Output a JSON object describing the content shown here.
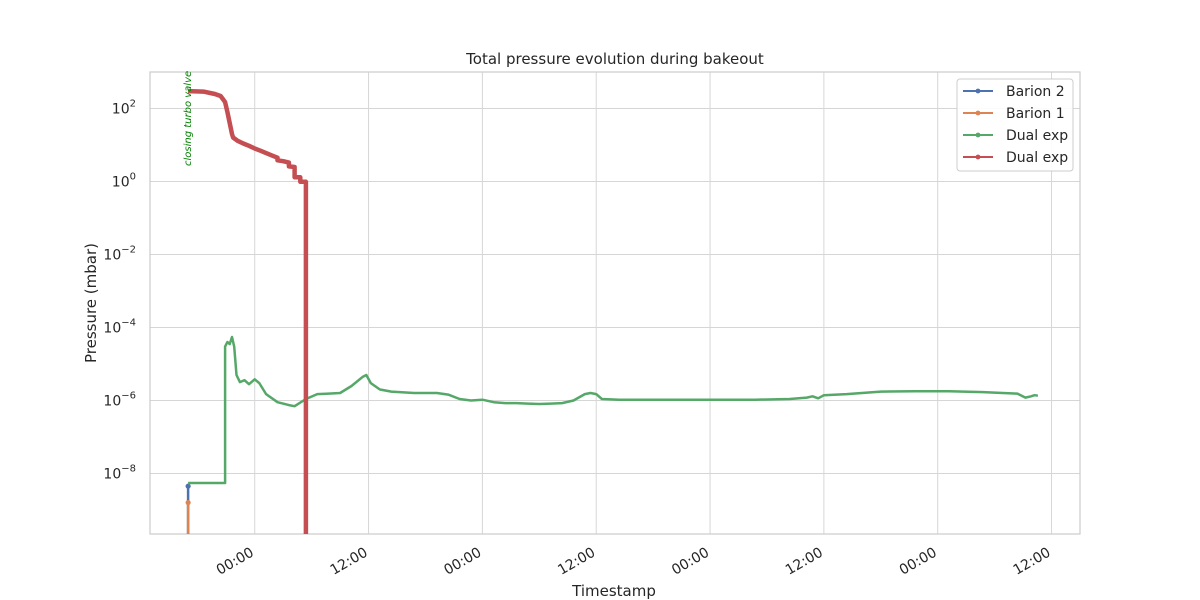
{
  "chart_data": {
    "type": "line",
    "title": "Total pressure evolution during bakeout",
    "xlabel": "Timestamp",
    "ylabel": "Pressure (mbar)",
    "x_unit": "hours",
    "xlim": [
      -9.2,
      72.5
    ],
    "ylog": true,
    "ylim": [
      2.2e-10,
      1000
    ],
    "yticks": [
      {
        "value": 100,
        "base": "10",
        "exp": "2"
      },
      {
        "value": 1,
        "base": "10",
        "exp": "0"
      },
      {
        "value": 0.01,
        "base": "10",
        "exp": "−2"
      },
      {
        "value": 0.0001,
        "base": "10",
        "exp": "−4"
      },
      {
        "value": 1e-06,
        "base": "10",
        "exp": "−6"
      },
      {
        "value": 1e-08,
        "base": "10",
        "exp": "−8"
      }
    ],
    "xticks": [
      {
        "value": 0,
        "label": "00:00"
      },
      {
        "value": 10,
        "label": "12:00"
      },
      {
        "value": 20,
        "label": "00:00"
      },
      {
        "value": 30,
        "label": "12:00"
      },
      {
        "value": 40,
        "label": "00:00"
      },
      {
        "value": 50,
        "label": "12:00"
      },
      {
        "value": 60,
        "label": "00:00"
      },
      {
        "value": 70,
        "label": "12:00"
      }
    ],
    "grid": true,
    "legend_position": "top-right",
    "annotation": {
      "text": "closing turbo valve",
      "x": -5.6,
      "color": "#008000"
    },
    "series": [
      {
        "name": "Barion 2",
        "color": "#4c72b0",
        "points": [
          [
            -5.85,
            2.2e-10
          ],
          [
            -5.85,
            4.5e-09
          ]
        ]
      },
      {
        "name": "Barion 1",
        "color": "#dd8452",
        "points": [
          [
            -5.85,
            2.2e-10
          ],
          [
            -5.85,
            1.6e-09
          ]
        ]
      },
      {
        "name": "Dual exp",
        "color": "#55a868",
        "points": [
          [
            -5.85,
            5.5e-09
          ],
          [
            -2.6,
            5.5e-09
          ],
          [
            -2.6,
            3e-05
          ],
          [
            -2.4,
            4e-05
          ],
          [
            -2.2,
            3.5e-05
          ],
          [
            -2.0,
            5.5e-05
          ],
          [
            -1.8,
            3e-05
          ],
          [
            -1.6,
            5e-06
          ],
          [
            -1.3,
            3.2e-06
          ],
          [
            -0.9,
            3.6e-06
          ],
          [
            -0.5,
            2.8e-06
          ],
          [
            0.0,
            3.8e-06
          ],
          [
            0.4,
            3e-06
          ],
          [
            1.0,
            1.5e-06
          ],
          [
            2.0,
            9e-07
          ],
          [
            3.0,
            7.5e-07
          ],
          [
            3.5,
            7e-07
          ],
          [
            4.5,
            1.1e-06
          ],
          [
            5.5,
            1.5e-06
          ],
          [
            6.5,
            1.55e-06
          ],
          [
            7.5,
            1.6e-06
          ],
          [
            8.5,
            2.5e-06
          ],
          [
            9.5,
            4.5e-06
          ],
          [
            9.8,
            5e-06
          ],
          [
            10.2,
            3e-06
          ],
          [
            11.0,
            2e-06
          ],
          [
            12.0,
            1.75e-06
          ],
          [
            14.0,
            1.6e-06
          ],
          [
            16.0,
            1.6e-06
          ],
          [
            17.0,
            1.45e-06
          ],
          [
            18.0,
            1.1e-06
          ],
          [
            19.0,
            1e-06
          ],
          [
            20.0,
            1.05e-06
          ],
          [
            21.0,
            9e-07
          ],
          [
            22.0,
            8.5e-07
          ],
          [
            23.0,
            8.5e-07
          ],
          [
            24.0,
            8.2e-07
          ],
          [
            25.0,
            8e-07
          ],
          [
            26.0,
            8.2e-07
          ],
          [
            27.0,
            8.5e-07
          ],
          [
            28.0,
            1e-06
          ],
          [
            29.0,
            1.5e-06
          ],
          [
            29.5,
            1.6e-06
          ],
          [
            30.0,
            1.5e-06
          ],
          [
            30.5,
            1.1e-06
          ],
          [
            32.0,
            1.05e-06
          ],
          [
            36.0,
            1.05e-06
          ],
          [
            40.0,
            1.05e-06
          ],
          [
            44.0,
            1.05e-06
          ],
          [
            47.0,
            1.1e-06
          ],
          [
            48.5,
            1.2e-06
          ],
          [
            49.0,
            1.3e-06
          ],
          [
            49.5,
            1.15e-06
          ],
          [
            50.0,
            1.4e-06
          ],
          [
            52.0,
            1.5e-06
          ],
          [
            55.0,
            1.75e-06
          ],
          [
            58.0,
            1.8e-06
          ],
          [
            61.0,
            1.8e-06
          ],
          [
            64.0,
            1.7e-06
          ],
          [
            67.0,
            1.55e-06
          ],
          [
            67.7,
            1.2e-06
          ],
          [
            68.2,
            1.3e-06
          ],
          [
            68.5,
            1.4e-06
          ],
          [
            68.8,
            1.35e-06
          ]
        ]
      },
      {
        "name": "Dual exp",
        "color": "#c44e52",
        "points": [
          [
            -5.85,
            300
          ],
          [
            -4.5,
            290
          ],
          [
            -3.5,
            250
          ],
          [
            -3.0,
            220
          ],
          [
            -2.6,
            150
          ],
          [
            -2.4,
            80
          ],
          [
            -2.2,
            40
          ],
          [
            -2.0,
            20
          ],
          [
            -1.9,
            16
          ],
          [
            -1.5,
            13
          ],
          [
            -1.0,
            11
          ],
          [
            -0.5,
            9.5
          ],
          [
            0.0,
            8
          ],
          [
            0.5,
            7
          ],
          [
            1.0,
            6
          ],
          [
            1.5,
            5.2
          ],
          [
            2.0,
            4.5
          ],
          [
            2.0,
            3.8
          ],
          [
            2.5,
            3.6
          ],
          [
            3.0,
            3.3
          ],
          [
            3.0,
            2.6
          ],
          [
            3.5,
            2.5
          ],
          [
            3.5,
            1.3
          ],
          [
            4.0,
            1.3
          ],
          [
            4.0,
            0.98
          ],
          [
            4.5,
            0.98
          ],
          [
            4.5,
            2.2e-10
          ]
        ]
      }
    ]
  }
}
